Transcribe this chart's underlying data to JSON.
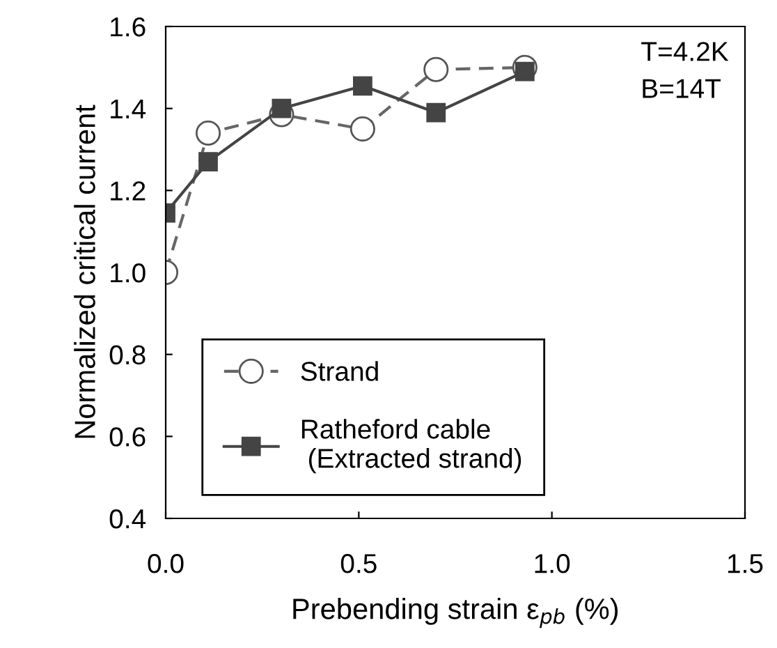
{
  "chart_data": {
    "type": "line",
    "xlabel": "Prebending strain ε$_{pb}$ (%)",
    "ylabel": "Normalized critical current",
    "xlim": [
      0,
      1.5
    ],
    "xticks": [
      {
        "value": 0,
        "label": "0.0"
      },
      0.5,
      {
        "value": 1,
        "label": "1.0"
      },
      1.5
    ],
    "ylim": [
      0.4,
      1.6
    ],
    "yticks": [
      0.4,
      0.6,
      0.8,
      {
        "value": 1,
        "label": "1.0"
      },
      1.2,
      1.4,
      1.6
    ],
    "grid": false,
    "legend": "bottom left",
    "annotations": [
      "T=4.2K\nB=14T"
    ],
    "series": [
      {
        "name": "Strand",
        "color": "#666666",
        "marker": "circle",
        "line_style": "dashed",
        "x": [
          0,
          0.11,
          0.3,
          0.51,
          0.7,
          0.93
        ],
        "values": [
          1.0,
          1.34,
          1.385,
          1.35,
          1.495,
          1.5
        ]
      },
      {
        "name": "Ratheford cable\n (Extracted strand)",
        "color": "#444444",
        "marker": "square",
        "line_style": "solid",
        "x": [
          0,
          0.11,
          0.3,
          0.51,
          0.7,
          0.93
        ],
        "values": [
          1.145,
          1.27,
          1.4,
          1.455,
          1.39,
          1.49
        ]
      }
    ]
  }
}
